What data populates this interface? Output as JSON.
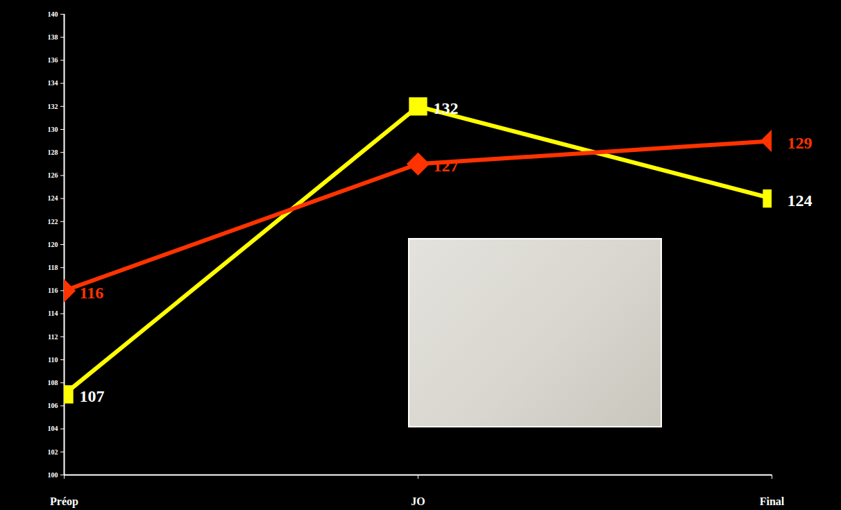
{
  "chart_data": {
    "type": "line",
    "categories": [
      "Préop",
      "JO",
      "Final"
    ],
    "series": [
      {
        "color": "#ffff00",
        "marker": "square",
        "values": [
          107,
          132,
          124
        ]
      },
      {
        "color": "#ff3300",
        "marker": "diamond",
        "values": [
          116,
          127,
          129
        ]
      }
    ],
    "ylim": [
      100,
      140
    ],
    "yticks": [
      100,
      102,
      104,
      106,
      108,
      110,
      112,
      114,
      116,
      118,
      120,
      122,
      124,
      126,
      128,
      130,
      132,
      134,
      136,
      138,
      140
    ],
    "data_labels": true,
    "grid": false
  }
}
